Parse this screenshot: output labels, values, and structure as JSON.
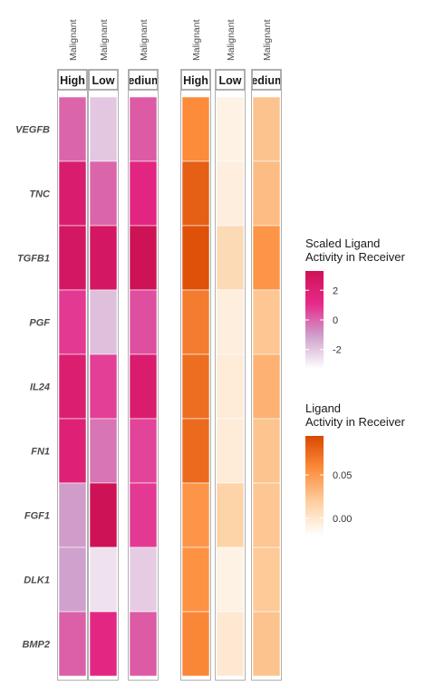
{
  "chart_data": {
    "type": "heatmap",
    "ligands": [
      "VEGFB",
      "TNC",
      "TGFB1",
      "PGF",
      "IL24",
      "FN1",
      "FGF1",
      "DLK1",
      "BMP2"
    ],
    "receiver_label": "Malignant",
    "panels": [
      {
        "name": "Scaled Ligand Activity in Receiver",
        "facets": [
          "High",
          "Low",
          "Medium"
        ],
        "facet_display": [
          "High",
          "Low",
          "ledium"
        ],
        "values": [
          [
            0.0,
            -2.0,
            0.2
          ],
          [
            2.3,
            0.0,
            1.5
          ],
          [
            2.8,
            2.8,
            3.3
          ],
          [
            0.8,
            -1.8,
            0.4
          ],
          [
            2.2,
            0.7,
            2.3
          ],
          [
            1.9,
            -0.3,
            0.6
          ],
          [
            -1.0,
            3.3,
            0.8
          ],
          [
            -1.1,
            -2.6,
            -2.1
          ],
          [
            0.1,
            1.4,
            0.2
          ]
        ],
        "scale": {
          "min": -3.3,
          "max": 3.3,
          "colors": [
            "#ffffff",
            "#cfa1cc",
            "#e7298a",
            "#ce1256"
          ]
        },
        "legend": {
          "title_lines": [
            "Scaled Ligand",
            "Activity in Receiver"
          ],
          "ticks": [
            2,
            0,
            -2
          ],
          "tick_labels": [
            "2",
            "0",
            "-2"
          ]
        }
      },
      {
        "name": "Ligand Activity in Receiver",
        "facets": [
          "High",
          "Low",
          "Medium"
        ],
        "facet_display": [
          "High",
          "Low",
          "ledium"
        ],
        "values": [
          [
            0.058,
            -0.009,
            0.026
          ],
          [
            0.082,
            -0.006,
            0.03
          ],
          [
            0.09,
            0.01,
            0.052
          ],
          [
            0.066,
            -0.006,
            0.024
          ],
          [
            0.074,
            -0.004,
            0.036
          ],
          [
            0.076,
            -0.004,
            0.025
          ],
          [
            0.052,
            0.016,
            0.024
          ],
          [
            0.054,
            -0.009,
            0.022
          ],
          [
            0.06,
            -0.001,
            0.026
          ]
        ],
        "scale": {
          "min": -0.02,
          "max": 0.095,
          "colors": [
            "#ffffff",
            "#fdd0a2",
            "#fd8d3c",
            "#d94801"
          ]
        },
        "legend": {
          "title_lines": [
            "Ligand",
            "Activity in Receiver"
          ],
          "ticks": [
            0.05,
            0.0
          ],
          "tick_labels": [
            "0.05",
            "0.00"
          ]
        }
      }
    ]
  }
}
